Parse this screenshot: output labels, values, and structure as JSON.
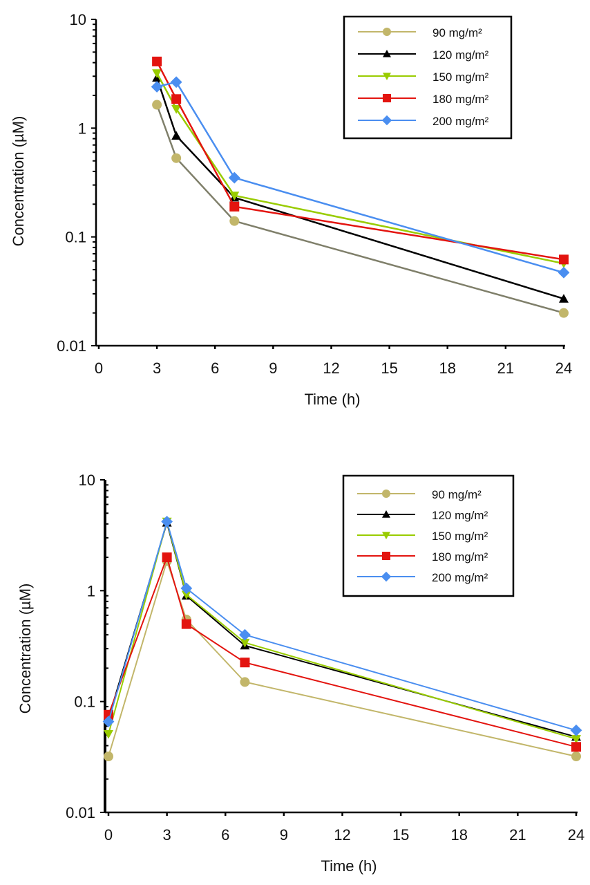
{
  "chart_data": [
    {
      "type": "line",
      "title": "",
      "xlabel": "Time (h)",
      "ylabel": "Concentration (µM)",
      "yscale": "log",
      "xlim": [
        0,
        24
      ],
      "ylim": [
        0.01,
        10
      ],
      "xticks": [
        "0",
        "3",
        "6",
        "9",
        "12",
        "15",
        "18",
        "21",
        "24"
      ],
      "yticks": [
        "0.01",
        "0.1",
        "1",
        "10"
      ],
      "grid": false,
      "legend_position": "top-right",
      "x": [
        3,
        4,
        7,
        24
      ],
      "series": [
        {
          "name": "90 mg/m²",
          "marker": "circle",
          "color": "#c2b66a",
          "line_color": "#7f7f6a",
          "values": [
            1.64,
            0.53,
            0.14,
            0.02
          ]
        },
        {
          "name": "120 mg/m²",
          "marker": "triangle-up",
          "color": "#000000",
          "line_color": "#000000",
          "values": [
            2.9,
            0.85,
            0.23,
            0.027
          ]
        },
        {
          "name": "150 mg/m²",
          "marker": "triangle-down",
          "color": "#99cc00",
          "line_color": "#99cc00",
          "values": [
            3.2,
            1.5,
            0.24,
            0.057
          ]
        },
        {
          "name": "180 mg/m²",
          "marker": "square",
          "color": "#e3140f",
          "line_color": "#e3140f",
          "values": [
            4.1,
            1.85,
            0.19,
            0.062
          ]
        },
        {
          "name": "200 mg/m²",
          "marker": "diamond",
          "color": "#4a8ef0",
          "line_color": "#4a8ef0",
          "values": [
            2.4,
            2.65,
            0.35,
            0.047
          ]
        }
      ]
    },
    {
      "type": "line",
      "title": "",
      "xlabel": "Time (h)",
      "ylabel": "Concentration (µM)",
      "yscale": "log",
      "xlim": [
        0,
        24
      ],
      "ylim": [
        0.01,
        10
      ],
      "xticks": [
        "0",
        "3",
        "6",
        "9",
        "12",
        "15",
        "18",
        "21",
        "24"
      ],
      "yticks": [
        "0.01",
        "0.1",
        "1",
        "10"
      ],
      "grid": false,
      "legend_position": "top-right",
      "x": [
        0,
        3,
        4,
        7,
        24
      ],
      "series": [
        {
          "name": "90 mg/m²",
          "marker": "circle",
          "color": "#c2b66a",
          "line_color": "#c2b66a",
          "values": [
            0.032,
            1.85,
            0.55,
            0.15,
            0.032
          ]
        },
        {
          "name": "120 mg/m²",
          "marker": "triangle-up",
          "color": "#000000",
          "line_color": "#000000",
          "values": [
            0.07,
            4.1,
            0.9,
            0.32,
            0.048
          ]
        },
        {
          "name": "150 mg/m²",
          "marker": "triangle-down",
          "color": "#99cc00",
          "line_color": "#99cc00",
          "values": [
            0.051,
            4.2,
            0.92,
            0.34,
            0.046
          ]
        },
        {
          "name": "180 mg/m²",
          "marker": "square",
          "color": "#e3140f",
          "line_color": "#e3140f",
          "values": [
            0.076,
            2.0,
            0.5,
            0.225,
            0.039
          ]
        },
        {
          "name": "200 mg/m²",
          "marker": "diamond",
          "color": "#4a8ef0",
          "line_color": "#4a8ef0",
          "values": [
            0.066,
            4.2,
            1.05,
            0.4,
            0.055
          ]
        }
      ]
    }
  ]
}
